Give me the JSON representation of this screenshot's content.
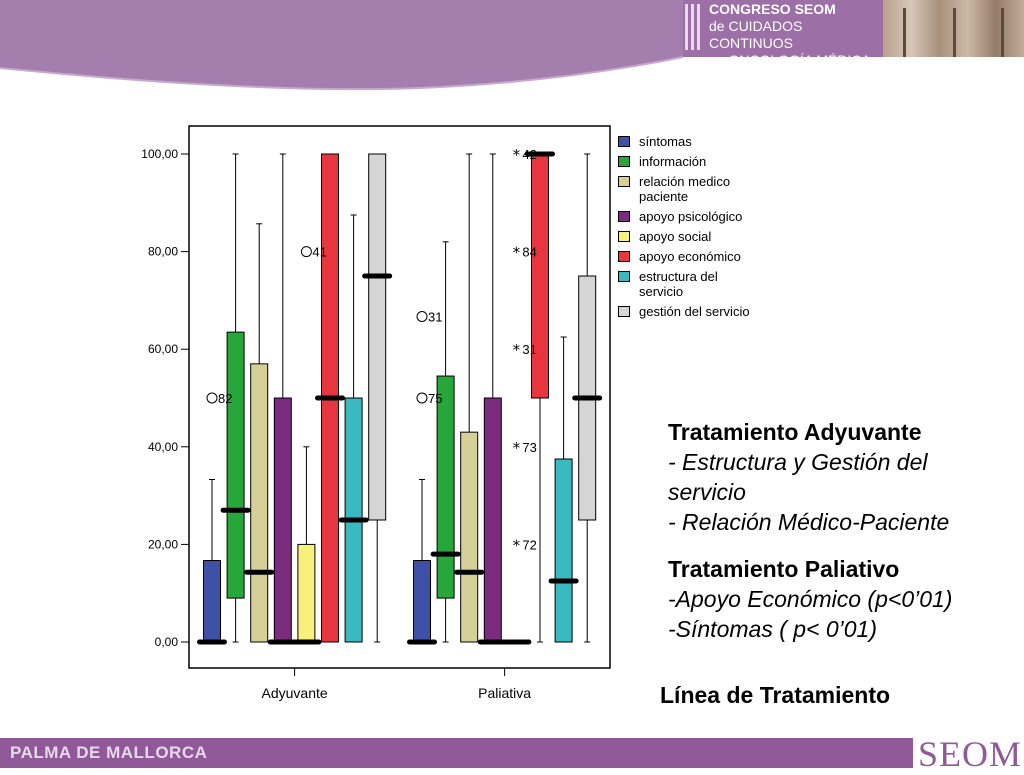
{
  "header": {
    "congress_lines": [
      "CONGRESO SEOM",
      "de CUIDADOS CONTINUOS",
      "en ONCOLOGÍA MÉDICA"
    ],
    "band_color": "#a47fae"
  },
  "footer": {
    "location": "PALMA DE MALLORCA",
    "logo": "SEOM",
    "color": "#8f5a97"
  },
  "annotations": {
    "heading_1": "Tratamiento Adyuvante",
    "item_1a": "- Estructura y Gestión del servicio",
    "item_1b": "- Relación Médico-Paciente",
    "heading_2": "Tratamiento Paliativo",
    "item_2a": "-Apoyo Económico (p<0’01)",
    "item_2b": "-Síntomas ( p< 0’01)",
    "axis_title": "Línea de Tratamiento"
  },
  "chart_data": {
    "type": "boxplot",
    "groups": [
      "Adyuvante",
      "Paliativa"
    ],
    "yticks": [
      "0,00",
      "20,00",
      "40,00",
      "60,00",
      "80,00",
      "100,00"
    ],
    "ylim": [
      0,
      100
    ],
    "grid": false,
    "legend_position": "right",
    "series": [
      {
        "name": "síntomas",
        "color": "#3f51a6"
      },
      {
        "name": "información",
        "color": "#27a639"
      },
      {
        "name": "relación medico paciente",
        "color": "#d6cf97"
      },
      {
        "name": "apoyo psicológico",
        "color": "#7b2c7e"
      },
      {
        "name": "apoyo social",
        "color": "#f7f07a"
      },
      {
        "name": "apoyo económico",
        "color": "#e8363e"
      },
      {
        "name": "estructura del servicio",
        "color": "#3bb9c1"
      },
      {
        "name": "gestión del servicio",
        "color": "#d5d5d5"
      }
    ],
    "boxes": [
      {
        "group": 0,
        "series": 0,
        "whisker_low": 0,
        "q1": 0,
        "median": 0,
        "q3": 16.7,
        "whisker_high": 33.3
      },
      {
        "group": 0,
        "series": 1,
        "whisker_low": 0,
        "q1": 9,
        "median": 27,
        "q3": 63.5,
        "whisker_high": 100
      },
      {
        "group": 0,
        "series": 2,
        "whisker_low": 0,
        "q1": 0,
        "median": 14.3,
        "q3": 57,
        "whisker_high": 85.7
      },
      {
        "group": 0,
        "series": 3,
        "whisker_low": 0,
        "q1": 0,
        "median": 0,
        "q3": 50,
        "whisker_high": 100
      },
      {
        "group": 0,
        "series": 4,
        "whisker_low": 0,
        "q1": 0,
        "median": 0,
        "q3": 20,
        "whisker_high": 40
      },
      {
        "group": 0,
        "series": 5,
        "whisker_low": 0,
        "q1": 0,
        "median": 50,
        "q3": 100,
        "whisker_high": 100
      },
      {
        "group": 0,
        "series": 6,
        "whisker_low": 0,
        "q1": 0,
        "median": 25,
        "q3": 50,
        "whisker_high": 87.5
      },
      {
        "group": 0,
        "series": 7,
        "whisker_low": 0,
        "q1": 25,
        "median": 75,
        "q3": 100,
        "whisker_high": 100
      },
      {
        "group": 1,
        "series": 0,
        "whisker_low": 0,
        "q1": 0,
        "median": 0,
        "q3": 16.7,
        "whisker_high": 33.3
      },
      {
        "group": 1,
        "series": 1,
        "whisker_low": 0,
        "q1": 9,
        "median": 18,
        "q3": 54.5,
        "whisker_high": 82
      },
      {
        "group": 1,
        "series": 2,
        "whisker_low": 0,
        "q1": 0,
        "median": 14.3,
        "q3": 43,
        "whisker_high": 100
      },
      {
        "group": 1,
        "series": 3,
        "whisker_low": 0,
        "q1": 0,
        "median": 0,
        "q3": 50,
        "whisker_high": 100
      },
      {
        "group": 1,
        "series": 4,
        "whisker_low": 0,
        "q1": 0,
        "median": 0,
        "q3": 0,
        "whisker_high": 0
      },
      {
        "group": 1,
        "series": 5,
        "whisker_low": 0,
        "q1": 50,
        "median": 100,
        "q3": 100,
        "whisker_high": 100
      },
      {
        "group": 1,
        "series": 6,
        "whisker_low": 0,
        "q1": 0,
        "median": 12.5,
        "q3": 37.5,
        "whisker_high": 62.5
      },
      {
        "group": 1,
        "series": 7,
        "whisker_low": 0,
        "q1": 25,
        "median": 50,
        "q3": 75,
        "whisker_high": 100
      }
    ],
    "outliers": [
      {
        "group": 0,
        "series": 0,
        "value": 50,
        "label": "82",
        "marker": "circle"
      },
      {
        "group": 0,
        "series": 4,
        "value": 80,
        "label": "41",
        "marker": "circle"
      },
      {
        "group": 1,
        "series": 0,
        "value": 66.7,
        "label": "31",
        "marker": "circle"
      },
      {
        "group": 1,
        "series": 0,
        "value": 50,
        "label": "75",
        "marker": "circle"
      },
      {
        "group": 1,
        "series": 4,
        "value": 100,
        "label": "42",
        "marker": "star"
      },
      {
        "group": 1,
        "series": 4,
        "value": 80,
        "label": "84",
        "marker": "star"
      },
      {
        "group": 1,
        "series": 4,
        "value": 60,
        "label": "31",
        "marker": "star"
      },
      {
        "group": 1,
        "series": 4,
        "value": 40,
        "label": "73",
        "marker": "star"
      },
      {
        "group": 1,
        "series": 4,
        "value": 20,
        "label": "72",
        "marker": "star"
      }
    ]
  }
}
